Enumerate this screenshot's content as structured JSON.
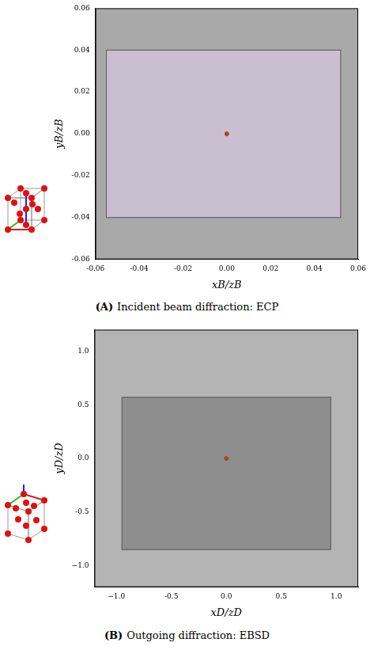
{
  "chart_data": [
    {
      "type": "scatter",
      "label": "(A)",
      "caption": "Incident beam diffraction: ECP",
      "x_label": "xB/zB",
      "y_label": "yB/zB",
      "xlim": [
        -0.06,
        0.06
      ],
      "ylim": [
        -0.06,
        0.06
      ],
      "xticks": [
        -0.06,
        -0.04,
        -0.02,
        {
          "value": 0,
          "label": "0.00"
        },
        0.02,
        0.04,
        0.06
      ],
      "yticks": [
        -0.06,
        -0.04,
        -0.02,
        {
          "value": 0,
          "label": "0.00"
        },
        0.02,
        0.04,
        0.06
      ],
      "background_color": "#a9a9a9",
      "overlay": {
        "x": [
          -0.055,
          0.052
        ],
        "y": [
          -0.04,
          0.04
        ],
        "color": "#c9bfd0"
      },
      "x": [
        0
      ],
      "values": [
        0
      ],
      "color": "#c0392b",
      "marker": "circle",
      "grid": false
    },
    {
      "type": "scatter",
      "label": "(B)",
      "caption": "Outgoing diffraction: EBSD",
      "x_label": "xD/zD",
      "y_label": "yD/zD",
      "xlim": [
        -1.2,
        1.2
      ],
      "ylim": [
        -1.2,
        1.2
      ],
      "xticks": [
        {
          "value": -1,
          "label": "−1.0"
        },
        -0.5,
        {
          "value": 0,
          "label": "0.0"
        },
        0.5,
        {
          "value": 1,
          "label": "1.0"
        }
      ],
      "yticks": [
        {
          "value": -1,
          "label": "−1.0"
        },
        -0.5,
        {
          "value": 0,
          "label": "0.0"
        },
        0.5,
        {
          "value": 1,
          "label": "1.0"
        }
      ],
      "background_color": "#b4b4b4",
      "overlay": {
        "x": [
          -0.95,
          0.95
        ],
        "y": [
          -0.85,
          0.57
        ],
        "color": "#8e8e8e"
      },
      "x": [
        0
      ],
      "values": [
        0
      ],
      "color": "#c0392b",
      "marker": "circle",
      "grid": false
    }
  ]
}
